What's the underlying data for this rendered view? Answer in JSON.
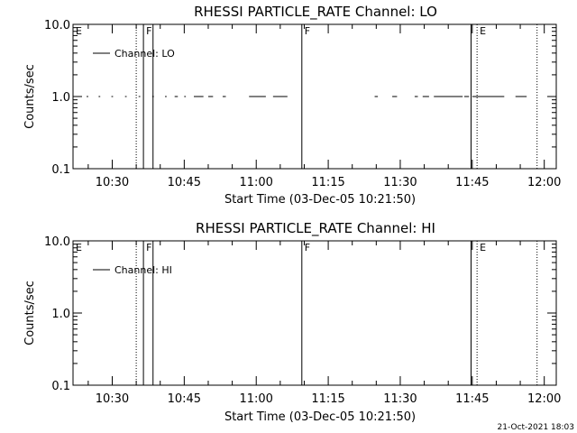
{
  "footer_timestamp": "21-Oct-2021 18:03",
  "chart_data": [
    {
      "type": "line",
      "title": "RHESSI PARTICLE_RATE Channel: LO",
      "xlabel": "Start Time (03-Dec-05 10:21:50)",
      "ylabel": "Counts/sec",
      "y_scale": "log",
      "ylim": [
        0.1,
        10.0
      ],
      "xlim": [
        "10:21:50",
        "12:02:30"
      ],
      "grid": false,
      "legend_position": "top-left",
      "x_ticks": [
        "10:30",
        "10:45",
        "11:00",
        "11:15",
        "11:30",
        "11:45",
        "12:00"
      ],
      "y_ticks": [
        "0.1",
        "1.0",
        "10.0"
      ],
      "series": [
        {
          "name": "Channel: LO",
          "y_value": 1.0,
          "segments": [
            [
              "10:24:40",
              "10:25:00"
            ],
            [
              "10:27:10",
              "10:27:30"
            ],
            [
              "10:29:50",
              "10:30:10"
            ],
            [
              "10:32:40",
              "10:33:00"
            ],
            [
              "10:35:30",
              "10:35:50"
            ],
            [
              "10:38:20",
              "10:38:40"
            ],
            [
              "10:41:00",
              "10:41:20"
            ],
            [
              "10:43:00",
              "10:43:40"
            ],
            [
              "10:45:00",
              "10:45:20"
            ],
            [
              "10:47:00",
              "10:49:00"
            ],
            [
              "10:50:00",
              "10:51:00"
            ],
            [
              "10:53:00",
              "10:53:40"
            ],
            [
              "10:58:30",
              "11:02:00"
            ],
            [
              "11:03:30",
              "11:06:30"
            ],
            [
              "11:24:40",
              "11:25:20"
            ],
            [
              "11:28:20",
              "11:29:20"
            ],
            [
              "11:33:00",
              "11:33:40"
            ],
            [
              "11:34:40",
              "11:36:00"
            ],
            [
              "11:37:00",
              "11:43:00"
            ],
            [
              "11:43:20",
              "11:44:20"
            ],
            [
              "11:45:00",
              "11:51:40"
            ],
            [
              "11:54:00",
              "11:56:20"
            ]
          ]
        }
      ],
      "annotations": [
        {
          "label": "E",
          "time": "10:21:50",
          "style": "dotted",
          "label_side": "right"
        },
        {
          "label": "",
          "time": "10:35:00",
          "style": "dotted"
        },
        {
          "label": "F",
          "time": "10:36:30",
          "style": "solid"
        },
        {
          "label": "",
          "time": "10:38:30",
          "style": "solid"
        },
        {
          "label": "F",
          "time": "11:09:30",
          "style": "solid"
        },
        {
          "label": "",
          "time": "11:44:45",
          "style": "solid"
        },
        {
          "label": "E",
          "time": "11:46:00",
          "style": "dotted"
        },
        {
          "label": "",
          "time": "11:58:30",
          "style": "dotted"
        }
      ]
    },
    {
      "type": "line",
      "title": "RHESSI PARTICLE_RATE Channel: HI",
      "xlabel": "Start Time (03-Dec-05 10:21:50)",
      "ylabel": "Counts/sec",
      "y_scale": "log",
      "ylim": [
        0.1,
        10.0
      ],
      "xlim": [
        "10:21:50",
        "12:02:30"
      ],
      "grid": false,
      "legend_position": "top-left",
      "x_ticks": [
        "10:30",
        "10:45",
        "11:00",
        "11:15",
        "11:30",
        "11:45",
        "12:00"
      ],
      "y_ticks": [
        "0.1",
        "1.0",
        "10.0"
      ],
      "series": [
        {
          "name": "Channel: HI",
          "y_value": null,
          "segments": []
        }
      ],
      "annotations": [
        {
          "label": "E",
          "time": "10:21:50",
          "style": "dotted",
          "label_side": "right"
        },
        {
          "label": "",
          "time": "10:35:00",
          "style": "dotted"
        },
        {
          "label": "F",
          "time": "10:36:30",
          "style": "solid"
        },
        {
          "label": "",
          "time": "10:38:30",
          "style": "solid"
        },
        {
          "label": "F",
          "time": "11:09:30",
          "style": "solid"
        },
        {
          "label": "",
          "time": "11:44:45",
          "style": "solid"
        },
        {
          "label": "E",
          "time": "11:46:00",
          "style": "dotted"
        },
        {
          "label": "",
          "time": "11:58:30",
          "style": "dotted"
        }
      ]
    }
  ]
}
